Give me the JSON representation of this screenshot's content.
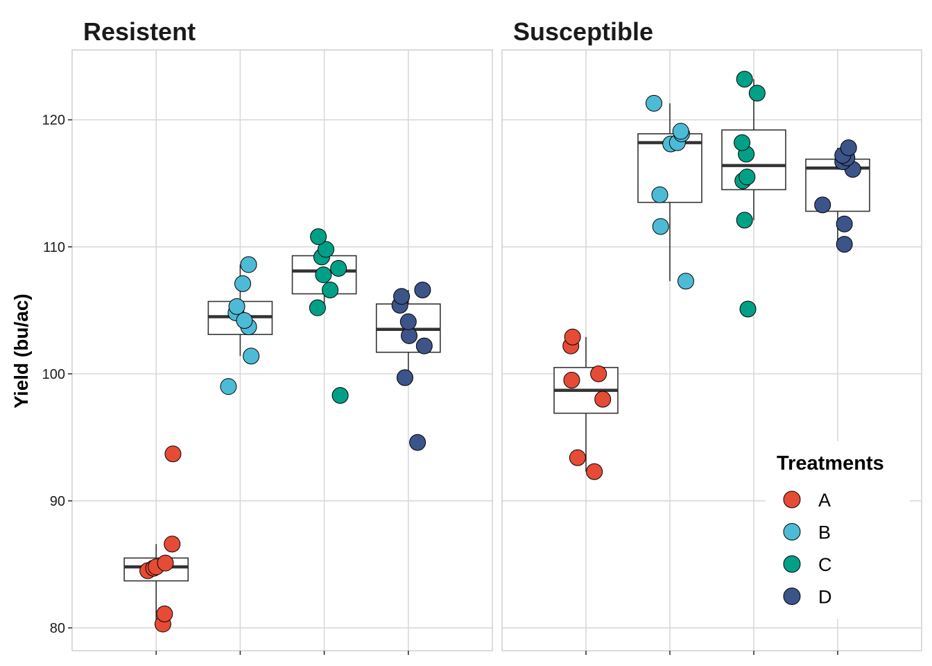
{
  "chart_data": {
    "type": "box_jitter",
    "ylabel": "Yield (bu/ac)",
    "ylim": [
      78.2,
      125.5
    ],
    "yticks": [
      80,
      90,
      100,
      110,
      120
    ],
    "grid": true,
    "legend": {
      "title": "Treatments",
      "placement": "bottom-right",
      "entries": [
        {
          "label": "A",
          "color": "#E64B35"
        },
        {
          "label": "B",
          "color": "#4DBBD5"
        },
        {
          "label": "C",
          "color": "#00A087"
        },
        {
          "label": "D",
          "color": "#3C5488"
        }
      ]
    },
    "panels": [
      {
        "title": "Resistent",
        "groups": [
          {
            "treatment": "A",
            "box": {
              "lower_whisker": 80.3,
              "q1": 83.7,
              "median": 84.8,
              "q3": 85.5,
              "upper_whisker": 86.6
            },
            "points": [
              [
                0.08,
                80.3
              ],
              [
                0.1,
                81.1
              ],
              [
                -0.1,
                84.5
              ],
              [
                -0.03,
                84.7
              ],
              [
                0.0,
                84.8
              ],
              [
                0.11,
                85.1
              ],
              [
                0.19,
                86.6
              ],
              [
                0.2,
                93.7
              ]
            ]
          },
          {
            "treatment": "B",
            "box": {
              "lower_whisker": 101.4,
              "q1": 103.1,
              "median": 104.5,
              "q3": 105.7,
              "upper_whisker": 108.6
            },
            "points": [
              [
                -0.14,
                99.0
              ],
              [
                0.13,
                101.4
              ],
              [
                0.1,
                103.7
              ],
              [
                -0.05,
                104.8
              ],
              [
                0.05,
                104.2
              ],
              [
                -0.04,
                105.3
              ],
              [
                0.03,
                107.1
              ],
              [
                0.1,
                108.6
              ]
            ]
          },
          {
            "treatment": "C",
            "box": {
              "lower_whisker": 105.2,
              "q1": 106.3,
              "median": 108.1,
              "q3": 109.3,
              "upper_whisker": 110.8
            },
            "points": [
              [
                0.19,
                98.3
              ],
              [
                -0.08,
                105.2
              ],
              [
                0.07,
                106.6
              ],
              [
                -0.01,
                107.8
              ],
              [
                0.17,
                108.3
              ],
              [
                -0.03,
                109.2
              ],
              [
                0.02,
                109.8
              ],
              [
                -0.07,
                110.8
              ]
            ]
          },
          {
            "treatment": "D",
            "box": {
              "lower_whisker": 99.7,
              "q1": 101.7,
              "median": 103.5,
              "q3": 105.5,
              "upper_whisker": 106.6
            },
            "points": [
              [
                0.11,
                94.6
              ],
              [
                -0.04,
                99.7
              ],
              [
                0.19,
                102.2
              ],
              [
                0.01,
                103.0
              ],
              [
                0.0,
                104.1
              ],
              [
                -0.1,
                105.4
              ],
              [
                -0.08,
                106.1
              ],
              [
                0.17,
                106.6
              ]
            ]
          }
        ]
      },
      {
        "title": "Susceptible",
        "groups": [
          {
            "treatment": "A",
            "box": {
              "lower_whisker": 92.3,
              "q1": 96.9,
              "median": 98.7,
              "q3": 100.5,
              "upper_whisker": 102.9
            },
            "points": [
              [
                0.1,
                92.3
              ],
              [
                -0.1,
                93.4
              ],
              [
                0.2,
                98.0
              ],
              [
                -0.17,
                99.5
              ],
              [
                0.15,
                100.0
              ],
              [
                -0.18,
                102.2
              ],
              [
                -0.16,
                102.9
              ]
            ]
          },
          {
            "treatment": "B",
            "box": {
              "lower_whisker": 107.3,
              "q1": 113.5,
              "median": 118.2,
              "q3": 118.9,
              "upper_whisker": 121.3
            },
            "points": [
              [
                0.19,
                107.3
              ],
              [
                -0.11,
                111.6
              ],
              [
                -0.12,
                114.1
              ],
              [
                0.01,
                118.1
              ],
              [
                0.09,
                118.2
              ],
              [
                0.14,
                118.9
              ],
              [
                0.13,
                119.1
              ],
              [
                -0.19,
                121.3
              ]
            ]
          },
          {
            "treatment": "C",
            "box": {
              "lower_whisker": 112.1,
              "q1": 114.5,
              "median": 116.4,
              "q3": 119.2,
              "upper_whisker": 123.2
            },
            "points": [
              [
                -0.07,
                105.1
              ],
              [
                -0.11,
                112.1
              ],
              [
                -0.13,
                115.2
              ],
              [
                -0.08,
                115.5
              ],
              [
                -0.09,
                117.3
              ],
              [
                -0.14,
                118.2
              ],
              [
                0.04,
                122.1
              ],
              [
                -0.11,
                123.2
              ]
            ]
          },
          {
            "treatment": "D",
            "box": {
              "lower_whisker": 110.2,
              "q1": 112.8,
              "median": 116.2,
              "q3": 116.9,
              "upper_whisker": 117.8
            },
            "points": [
              [
                0.08,
                110.2
              ],
              [
                0.08,
                111.8
              ],
              [
                -0.18,
                113.3
              ],
              [
                0.18,
                116.1
              ],
              [
                0.06,
                116.7
              ],
              [
                0.11,
                117.0
              ],
              [
                0.06,
                117.2
              ],
              [
                0.13,
                117.8
              ]
            ]
          }
        ]
      }
    ]
  }
}
